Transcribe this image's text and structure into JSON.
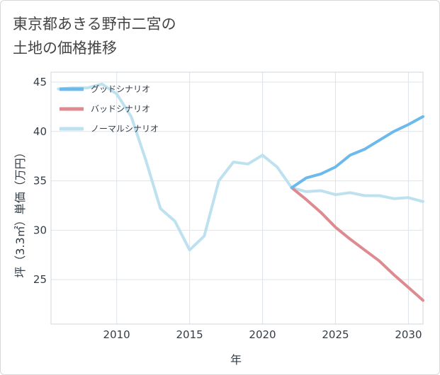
{
  "title": {
    "line1": "東京都あきる野市二宮の",
    "line2": "土地の価格推移"
  },
  "colors": {
    "good": "#6cb9ec",
    "bad": "#dd8a90",
    "normal": "#bee1f0",
    "grid": "#dde4ea",
    "text": "#333d47"
  },
  "chart_data": {
    "type": "line",
    "title": "東京都あきる野市二宮の土地の価格推移",
    "xlabel": "年",
    "ylabel": "坪（3.3㎡）単価（万円）",
    "xlim": [
      2005.5,
      2031
    ],
    "ylim": [
      20.5,
      46
    ],
    "xticks": [
      "2010",
      "2015",
      "2020",
      "2025",
      "2030"
    ],
    "yticks": [
      "25",
      "30",
      "35",
      "40",
      "45"
    ],
    "legend_position": "top-left",
    "series": [
      {
        "name": "グッドシナリオ",
        "key": "good",
        "x": [
          2022,
          2023,
          2024,
          2025,
          2026,
          2027,
          2028,
          2029,
          2030,
          2031
        ],
        "y": [
          34.3,
          35.3,
          35.7,
          36.4,
          37.6,
          38.2,
          39.1,
          40.0,
          40.7,
          41.5
        ]
      },
      {
        "name": "バッドシナリオ",
        "key": "bad",
        "x": [
          2022,
          2023,
          2024,
          2025,
          2026,
          2027,
          2028,
          2029,
          2030,
          2031
        ],
        "y": [
          34.3,
          33.1,
          31.8,
          30.3,
          29.1,
          28.0,
          26.9,
          25.5,
          24.2,
          22.9
        ]
      },
      {
        "name": "ノーマルシナリオ",
        "key": "normal",
        "x": [
          2006,
          2007,
          2008,
          2009,
          2010,
          2011,
          2012,
          2013,
          2014,
          2015,
          2016,
          2017,
          2018,
          2019,
          2020,
          2021,
          2022,
          2023,
          2024,
          2025,
          2026,
          2027,
          2028,
          2029,
          2030,
          2031
        ],
        "y": [
          44.3,
          44.4,
          44.4,
          44.8,
          43.8,
          41.5,
          37.1,
          32.2,
          30.9,
          28.0,
          29.4,
          35.0,
          36.9,
          36.7,
          37.6,
          36.4,
          34.3,
          33.9,
          34.0,
          33.6,
          33.8,
          33.5,
          33.5,
          33.2,
          33.3,
          32.9
        ]
      }
    ]
  }
}
